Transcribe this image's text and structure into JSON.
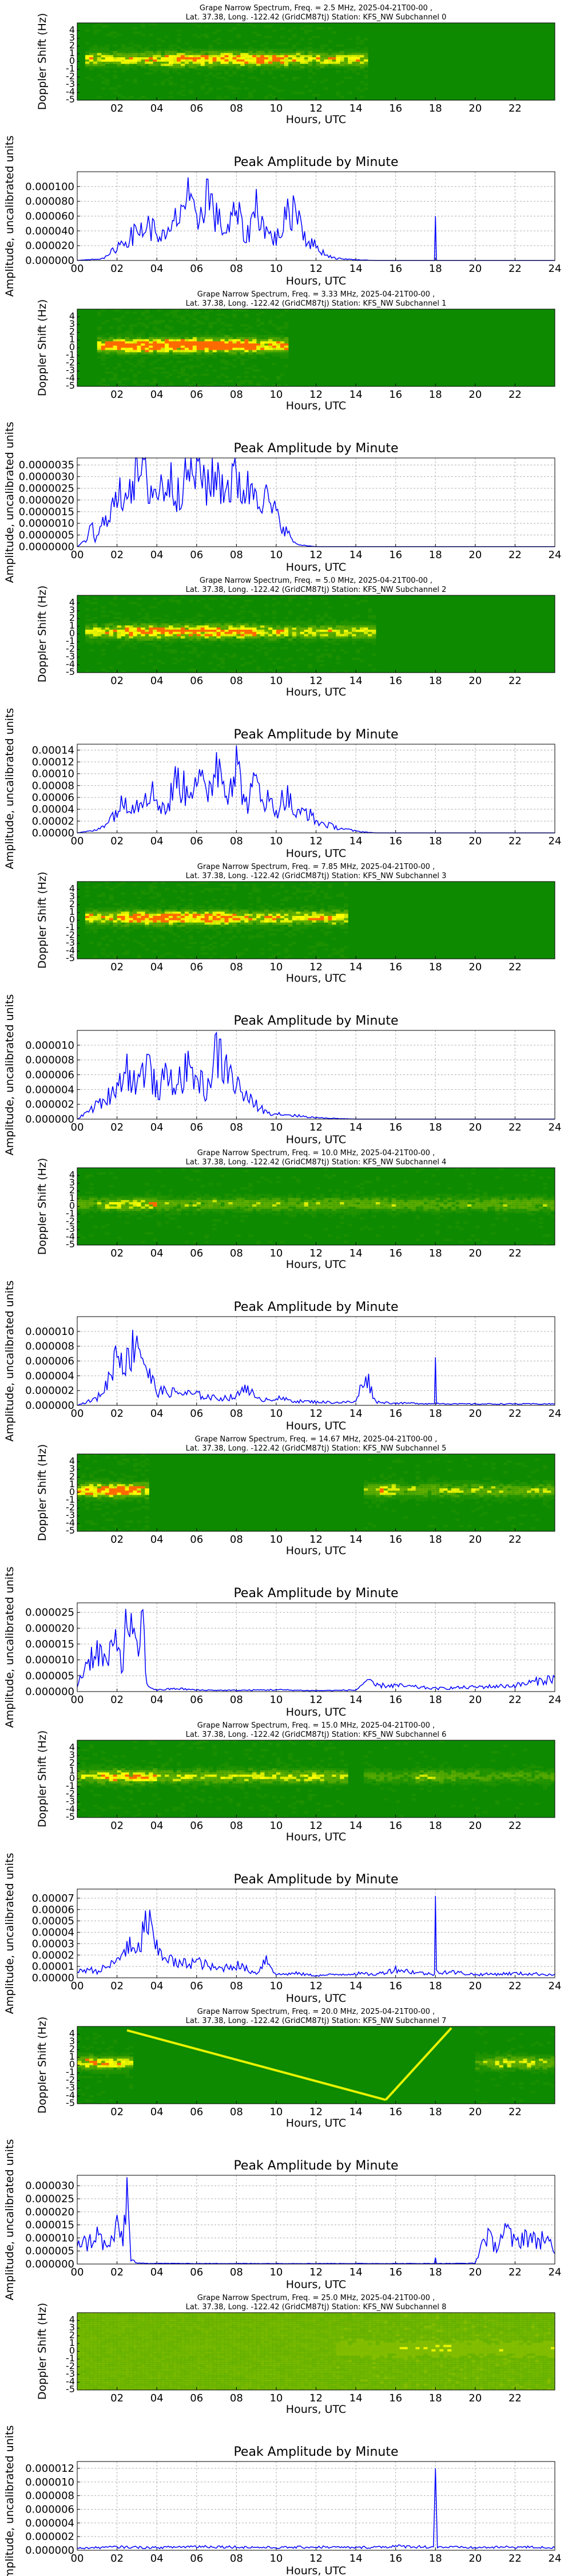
{
  "colors": {
    "trace": "#0000ff",
    "spec_bg": "#0d8a00",
    "spec_mid": "#7ab800",
    "spec_hi": "#ffff00",
    "spec_peak": "#ff6a00"
  },
  "common": {
    "spec_ylabel": "Doppler Shift (Hz)",
    "amp_ylabel": "Amplitude, uncalibrated units",
    "xlabel": "Hours, UTC",
    "amp_title": "Peak Amplitude by Minute",
    "spec_xticks": [
      "02",
      "04",
      "06",
      "08",
      "10",
      "12",
      "14",
      "16",
      "18",
      "20",
      "22"
    ],
    "amp_xticks": [
      "00",
      "02",
      "04",
      "06",
      "08",
      "10",
      "12",
      "14",
      "16",
      "18",
      "20",
      "22",
      "24"
    ],
    "spec_yticks": [
      "4",
      "3",
      "2",
      "1",
      "0",
      "-1",
      "-2",
      "-3",
      "-4",
      "-5"
    ]
  },
  "chart_data": [
    {
      "type": "heatmap",
      "title": "Grape Narrow Spectrum, Freq. = 2.5 MHz, 2025-04-21T00-00 ,",
      "subtitle": "Lat.  37.38, Long. -122.42 (GridCM87tj) Station: KFS_NW Subchannel 0",
      "xlabel": "Hours, UTC",
      "ylabel": "Doppler Shift (Hz)",
      "xlim": [
        0,
        24
      ],
      "ylim": [
        -5,
        5
      ],
      "bands": [
        {
          "x": [
            0.5,
            14.5
          ],
          "y": 0.3,
          "strength": 0.8,
          "peak": [
            4.5,
            10.5
          ]
        }
      ]
    },
    {
      "type": "line",
      "title": "Peak Amplitude by Minute",
      "xlabel": "Hours, UTC",
      "ylabel": "Amplitude, uncalibrated units",
      "ylim": [
        0,
        0.00012
      ],
      "yticks": [
        "0.000000",
        "0.000020",
        "0.000040",
        "0.000060",
        "0.000080",
        "0.000100"
      ],
      "x": [
        0,
        1,
        1.5,
        2,
        2.5,
        3,
        3.5,
        4,
        4.5,
        5,
        5.5,
        6,
        6.5,
        7,
        7.5,
        8,
        8.5,
        9,
        9.5,
        10,
        10.5,
        11,
        11.5,
        12,
        12.5,
        13,
        14,
        15,
        16,
        17,
        17.95,
        18,
        18.05,
        19,
        20,
        22,
        24
      ],
      "y": [
        0,
        2e-06,
        5e-06,
        2e-05,
        3e-05,
        4e-05,
        5e-05,
        4e-05,
        3e-05,
        6e-05,
        9e-05,
        5e-05,
        0.0001,
        6e-05,
        4e-05,
        7e-05,
        3e-05,
        8e-05,
        4e-05,
        3e-05,
        6e-05,
        8e-05,
        3e-05,
        2e-05,
        8e-06,
        3e-06,
        1e-06,
        0,
        0,
        0,
        0,
        6e-05,
        0,
        0,
        0,
        0,
        0
      ]
    },
    {
      "type": "heatmap",
      "title": "Grape Narrow Spectrum, Freq. = 3.33 MHz, 2025-04-21T00-00 ,",
      "subtitle": "Lat.  37.38, Long. -122.42 (GridCM87tj) Station: KFS_NW Subchannel 1",
      "xlabel": "Hours, UTC",
      "ylabel": "Doppler Shift (Hz)",
      "xlim": [
        0,
        24
      ],
      "ylim": [
        -5,
        5
      ],
      "bands": [
        {
          "x": [
            1,
            10.5
          ],
          "y": 0.3,
          "strength": 1,
          "peak": [
            2,
            9
          ]
        }
      ]
    },
    {
      "type": "line",
      "title": "Peak Amplitude by Minute",
      "xlabel": "Hours, UTC",
      "ylabel": "Amplitude, uncalibrated units",
      "ylim": [
        0,
        3.8e-06
      ],
      "yticks": [
        "0.0000000",
        "0.0000005",
        "0.0000010",
        "0.0000015",
        "0.0000020",
        "0.0000025",
        "0.0000030",
        "0.0000035"
      ],
      "x": [
        0,
        0.5,
        0.7,
        0.9,
        1,
        1.5,
        2,
        2.5,
        3,
        3.5,
        4,
        4.5,
        5,
        5.5,
        6,
        6.5,
        7,
        7.5,
        8,
        8.5,
        9,
        9.5,
        10,
        10.5,
        11,
        12,
        14,
        16,
        18,
        20,
        22,
        24
      ],
      "y": [
        0,
        3e-07,
        1.2e-06,
        2e-07,
        4e-07,
        1.5e-06,
        2e-06,
        2.8e-06,
        3.4e-06,
        2.9e-06,
        2.4e-06,
        3e-06,
        2.6e-06,
        3.3e-06,
        3.6e-06,
        2.9e-06,
        3.2e-06,
        2.7e-06,
        3.1e-06,
        2.5e-06,
        2.8e-06,
        2.1e-06,
        1.4e-06,
        7e-07,
        1e-07,
        0,
        0,
        0,
        0,
        0,
        0,
        0
      ]
    },
    {
      "type": "heatmap",
      "title": "Grape Narrow Spectrum, Freq. = 5.0 MHz, 2025-04-21T00-00 ,",
      "subtitle": "Lat.  37.38, Long. -122.42 (GridCM87tj) Station: KFS_NW Subchannel 2",
      "xlabel": "Hours, UTC",
      "ylabel": "Doppler Shift (Hz)",
      "xlim": [
        0,
        24
      ],
      "ylim": [
        -5,
        5
      ],
      "bands": [
        {
          "x": [
            0.5,
            15
          ],
          "y": 0.3,
          "strength": 0.8,
          "peak": [
            2,
            9
          ]
        }
      ]
    },
    {
      "type": "line",
      "title": "Peak Amplitude by Minute",
      "xlabel": "Hours, UTC",
      "ylabel": "Amplitude, uncalibrated units",
      "ylim": [
        0,
        0.00015
      ],
      "yticks": [
        "0.00000",
        "0.00002",
        "0.00004",
        "0.00006",
        "0.00008",
        "0.00010",
        "0.00012",
        "0.00014"
      ],
      "x": [
        0,
        1,
        1.5,
        2,
        2.5,
        3,
        3.5,
        4,
        4.5,
        5,
        5.5,
        6,
        6.5,
        7,
        7.5,
        8,
        8.5,
        9,
        9.5,
        10,
        10.5,
        11,
        11.5,
        12,
        13,
        14,
        15,
        16,
        18,
        20,
        22,
        24
      ],
      "y": [
        0,
        5e-06,
        2e-05,
        4e-05,
        6e-05,
        5e-05,
        8e-05,
        6e-05,
        4e-05,
        0.0001,
        7e-05,
        0.00011,
        6e-05,
        0.00013,
        8e-05,
        0.00012,
        5e-05,
        9e-05,
        6e-05,
        4e-05,
        7e-05,
        3e-05,
        4e-05,
        2e-05,
        1e-05,
        3e-06,
        0,
        0,
        0,
        0,
        0,
        0
      ]
    },
    {
      "type": "heatmap",
      "title": "Grape Narrow Spectrum, Freq. = 7.85 MHz, 2025-04-21T00-00 ,",
      "subtitle": "Lat.  37.38, Long. -122.42 (GridCM87tj) Station: KFS_NW Subchannel 3",
      "xlabel": "Hours, UTC",
      "ylabel": "Doppler Shift (Hz)",
      "xlim": [
        0,
        24
      ],
      "ylim": [
        -5,
        5
      ],
      "bands": [
        {
          "x": [
            0.5,
            13.5
          ],
          "y": 0.3,
          "strength": 0.85,
          "peak": [
            2,
            8
          ]
        }
      ]
    },
    {
      "type": "line",
      "title": "Peak Amplitude by Minute",
      "xlabel": "Hours, UTC",
      "ylabel": "Amplitude, uncalibrated units",
      "ylim": [
        0,
        1.2e-05
      ],
      "yticks": [
        "0.000000",
        "0.000002",
        "0.000004",
        "0.000006",
        "0.000008",
        "0.000010"
      ],
      "x": [
        0,
        0.5,
        1,
        1.5,
        2,
        2.5,
        3,
        3.5,
        4,
        4.5,
        5,
        5.5,
        6,
        6.5,
        7,
        7.5,
        8,
        8.5,
        9,
        9.5,
        10,
        11,
        12,
        13,
        14,
        16,
        18,
        20,
        22,
        24
      ],
      "y": [
        0,
        1e-06,
        2e-06,
        3e-06,
        5e-06,
        7e-06,
        5e-06,
        8e-06,
        4e-06,
        6e-06,
        5e-06,
        7e-06,
        6e-06,
        4e-06,
        9.5e-06,
        7e-06,
        5e-06,
        3e-06,
        2e-06,
        1e-06,
        8e-07,
        5e-07,
        2e-07,
        1e-07,
        0,
        0,
        0,
        0,
        0,
        0
      ]
    },
    {
      "type": "heatmap",
      "title": "Grape Narrow Spectrum, Freq. = 10.0 MHz, 2025-04-21T00-00 ,",
      "subtitle": "Lat.  37.38, Long. -122.42 (GridCM87tj) Station: KFS_NW Subchannel 4",
      "xlabel": "Hours, UTC",
      "ylabel": "Doppler Shift (Hz)",
      "xlim": [
        0,
        24
      ],
      "ylim": [
        -5,
        5
      ],
      "bands": [
        {
          "x": [
            0,
            24
          ],
          "y": 0.3,
          "strength": 0.55,
          "peak": [
            1.5,
            4
          ]
        }
      ]
    },
    {
      "type": "line",
      "title": "Peak Amplitude by Minute",
      "xlabel": "Hours, UTC",
      "ylabel": "Amplitude, uncalibrated units",
      "ylim": [
        0,
        1.2e-05
      ],
      "yticks": [
        "0.000000",
        "0.000002",
        "0.000004",
        "0.000006",
        "0.000008",
        "0.000010"
      ],
      "x": [
        0,
        1,
        1.5,
        2,
        2.5,
        3,
        3.5,
        4,
        5,
        6,
        7,
        8,
        8.5,
        9,
        10,
        11,
        12,
        13,
        14,
        14.5,
        15,
        16,
        17,
        17.95,
        18,
        18.05,
        19,
        20,
        22,
        24
      ],
      "y": [
        0,
        1e-06,
        3e-06,
        8e-06,
        6e-06,
        1e-05,
        5e-06,
        2e-06,
        1.8e-06,
        1.5e-06,
        1e-06,
        1.2e-06,
        3e-06,
        8e-07,
        1e-06,
        6e-07,
        5e-07,
        4e-07,
        5e-07,
        4.5e-06,
        5e-07,
        3e-07,
        3e-07,
        2e-07,
        6.5e-06,
        3e-07,
        2e-07,
        2e-07,
        2e-07,
        2e-07
      ]
    },
    {
      "type": "heatmap",
      "title": "Grape Narrow Spectrum, Freq. = 14.67 MHz, 2025-04-21T00-00 ,",
      "subtitle": "Lat.  37.38, Long. -122.42 (GridCM87tj) Station: KFS_NW Subchannel 5",
      "xlabel": "Hours, UTC",
      "ylabel": "Doppler Shift (Hz)",
      "xlim": [
        0,
        24
      ],
      "ylim": [
        -5,
        5
      ],
      "bands": [
        {
          "x": [
            0,
            3.5
          ],
          "y": 0.3,
          "strength": 0.9,
          "peak": [
            0.5,
            3
          ]
        },
        {
          "x": [
            14.5,
            24
          ],
          "y": 0.3,
          "strength": 0.6,
          "peak": [
            15,
            16
          ]
        }
      ]
    },
    {
      "type": "line",
      "title": "Peak Amplitude by Minute",
      "xlabel": "Hours, UTC",
      "ylabel": "Amplitude, uncalibrated units",
      "ylim": [
        0,
        2.8e-05
      ],
      "yticks": [
        "0.000000",
        "0.000005",
        "0.000010",
        "0.000015",
        "0.000020",
        "0.000025"
      ],
      "x": [
        0,
        0.5,
        1,
        1.5,
        2,
        2.3,
        2.5,
        3,
        3.3,
        3.5,
        4,
        5,
        6,
        8,
        10,
        12,
        14,
        14.5,
        15,
        16,
        18,
        20,
        22,
        24
      ],
      "y": [
        2e-06,
        1e-05,
        1.4e-05,
        9e-06,
        1.8e-05,
        8e-06,
        2.6e-05,
        1.2e-05,
        2.4e-05,
        2e-06,
        5e-07,
        1e-06,
        5e-07,
        4e-07,
        6e-07,
        3e-07,
        5e-07,
        3.5e-06,
        2e-06,
        2e-06,
        1e-06,
        1.5e-06,
        2e-06,
        4.5e-06
      ]
    },
    {
      "type": "heatmap",
      "title": "Grape Narrow Spectrum, Freq. = 15.0 MHz, 2025-04-21T00-00 ,",
      "subtitle": "Lat.  37.38, Long. -122.42 (GridCM87tj) Station: KFS_NW Subchannel 6",
      "xlabel": "Hours, UTC",
      "ylabel": "Doppler Shift (Hz)",
      "xlim": [
        0,
        24
      ],
      "ylim": [
        -5,
        5
      ],
      "bands": [
        {
          "x": [
            0,
            13.5
          ],
          "y": 0.3,
          "strength": 0.7,
          "peak": [
            1,
            4
          ]
        },
        {
          "x": [
            14.5,
            24
          ],
          "y": 0.3,
          "strength": 0.45,
          "peak": [
            17,
            19
          ]
        }
      ]
    },
    {
      "type": "line",
      "title": "Peak Amplitude by Minute",
      "xlabel": "Hours, UTC",
      "ylabel": "Amplitude, uncalibrated units",
      "ylim": [
        0,
        7.8e-05
      ],
      "yticks": [
        "0.00000",
        "0.00001",
        "0.00002",
        "0.00003",
        "0.00004",
        "0.00005",
        "0.00006",
        "0.00007"
      ],
      "x": [
        0,
        0.5,
        1,
        1.5,
        2,
        2.5,
        3,
        3.5,
        4,
        4.5,
        5,
        6,
        7,
        8,
        9,
        9.5,
        10,
        11,
        12,
        13,
        14,
        15,
        16,
        17,
        17.95,
        18,
        18.05,
        19,
        20,
        22,
        24
      ],
      "y": [
        5e-06,
        8e-06,
        6e-06,
        1e-05,
        1.5e-05,
        3e-05,
        2e-05,
        5.5e-05,
        2.5e-05,
        2e-05,
        1.2e-05,
        1.5e-05,
        8e-06,
        1.2e-05,
        4e-06,
        1.8e-05,
        3e-06,
        4e-06,
        2e-06,
        3e-06,
        4e-06,
        3e-06,
        8e-06,
        5e-06,
        3e-06,
        7.2e-05,
        6e-06,
        5e-06,
        3e-06,
        4e-06,
        3e-06
      ]
    },
    {
      "type": "heatmap",
      "title": "Grape Narrow Spectrum, Freq. = 20.0 MHz, 2025-04-21T00-00 ,",
      "subtitle": "Lat.  37.38, Long. -122.42 (GridCM87tj) Station: KFS_NW Subchannel 7",
      "xlabel": "Hours, UTC",
      "ylabel": "Doppler Shift (Hz)",
      "xlim": [
        0,
        24
      ],
      "ylim": [
        -5,
        5
      ],
      "bands": [
        {
          "x": [
            0,
            2.7
          ],
          "y": 0.3,
          "strength": 0.65,
          "peak": [
            0.5,
            2.5
          ]
        },
        {
          "x": [
            20,
            24
          ],
          "y": 0.3,
          "strength": 0.55,
          "peak": [
            21,
            23
          ]
        }
      ],
      "traces": [
        {
          "x": [
            2.5,
            15.5
          ],
          "y": [
            4.5,
            -4.5
          ]
        },
        {
          "x": [
            15.5,
            18.8
          ],
          "y": [
            -4.5,
            4.8
          ]
        }
      ]
    },
    {
      "type": "line",
      "title": "Peak Amplitude by Minute",
      "xlabel": "Hours, UTC",
      "ylabel": "Amplitude, uncalibrated units",
      "ylim": [
        0,
        3.4e-05
      ],
      "yticks": [
        "0.000000",
        "0.000005",
        "0.000010",
        "0.000015",
        "0.000020",
        "0.000025",
        "0.000030"
      ],
      "x": [
        0,
        0.5,
        1,
        1.5,
        2,
        2.3,
        2.5,
        2.7,
        3,
        6,
        10,
        14,
        17.95,
        18,
        18.05,
        20,
        20.5,
        21,
        21.5,
        22,
        22.5,
        23,
        23.5,
        24
      ],
      "y": [
        1e-05,
        8e-06,
        1.2e-05,
        6e-06,
        1.4e-05,
        1e-05,
        3e-05,
        2e-06,
        3e-07,
        2e-07,
        2e-07,
        2e-07,
        2e-07,
        2.5e-06,
        2e-07,
        3e-07,
        1.2e-05,
        7e-06,
        1.4e-05,
        8e-06,
        1.2e-05,
        9e-06,
        1.1e-05,
        4e-06
      ]
    },
    {
      "type": "heatmap",
      "title": "Grape Narrow Spectrum, Freq. = 25.0 MHz, 2025-04-21T00-00 ,",
      "subtitle": "Lat.  37.38, Long. -122.42 (GridCM87tj) Station: KFS_NW Subchannel 8",
      "xlabel": "Hours, UTC",
      "ylabel": "Doppler Shift (Hz)",
      "xlim": [
        0,
        24
      ],
      "ylim": [
        -5,
        5
      ],
      "bands": [
        {
          "x": [
            13,
            24
          ],
          "y": 0.3,
          "strength": 0.3,
          "peak": [
            16,
            19
          ]
        }
      ],
      "background": "noisy"
    },
    {
      "type": "line",
      "title": "Peak Amplitude by Minute",
      "xlabel": "Hours, UTC",
      "ylabel": "Amplitude, uncalibrated units",
      "ylim": [
        0,
        1.3e-05
      ],
      "yticks": [
        "0.000000",
        "0.000002",
        "0.000004",
        "0.000006",
        "0.000008",
        "0.000010",
        "0.000012"
      ],
      "x": [
        0,
        2,
        4,
        6,
        8,
        10,
        12,
        14,
        16,
        17.9,
        18,
        18.1,
        20,
        22,
        24
      ],
      "y": [
        3e-07,
        5e-07,
        4e-07,
        6e-07,
        5e-07,
        4e-07,
        5e-07,
        4e-07,
        6e-07,
        5e-07,
        1.2e-05,
        5e-07,
        4e-07,
        5e-07,
        4e-07
      ]
    }
  ]
}
